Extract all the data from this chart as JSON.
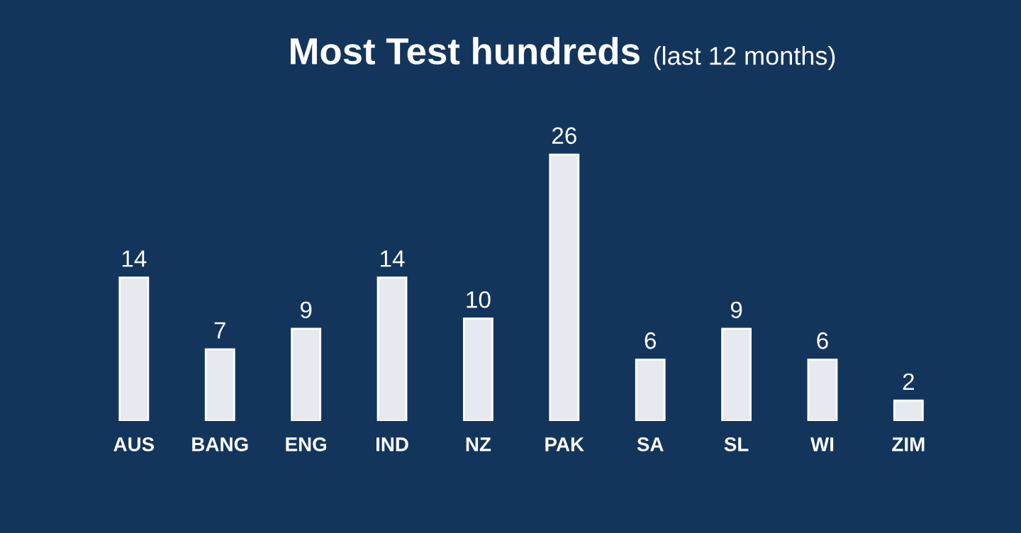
{
  "chart_data": {
    "type": "bar",
    "title": "Most Test hundreds",
    "subtitle": "(last 12 months)",
    "categories": [
      "AUS",
      "BANG",
      "ENG",
      "IND",
      "NZ",
      "PAK",
      "SA",
      "SL",
      "WI",
      "ZIM"
    ],
    "values": [
      14,
      7,
      9,
      14,
      10,
      26,
      6,
      9,
      6,
      2
    ],
    "color": "#e6eaf0",
    "data_labels": true,
    "grid": false,
    "legend": false
  }
}
